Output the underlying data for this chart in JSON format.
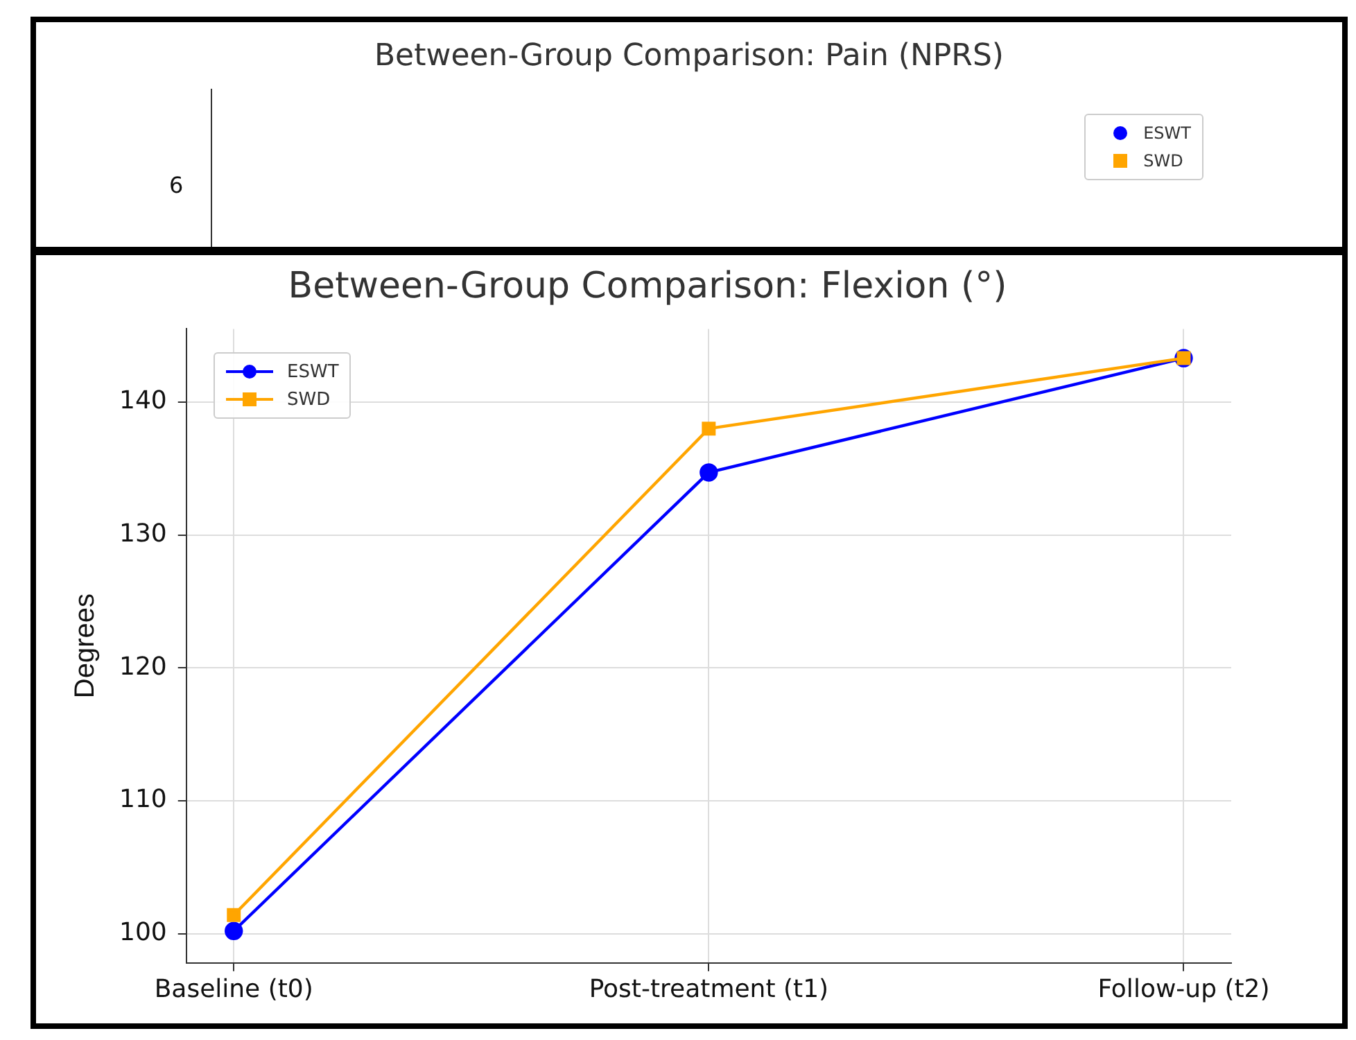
{
  "chart_data": [
    {
      "type": "other",
      "title": "Between-Group Comparison: Pain (NPRS)",
      "annotations": [
        "6",
        "ESWT",
        "SWD"
      ],
      "colors": [
        "#0000ff",
        "#ffa500"
      ]
    },
    {
      "type": "line",
      "title": "Between-Group Comparison: Flexion (°)",
      "ylabel": "Degrees",
      "categories": [
        "Baseline (t0)",
        "Post-treatment (t1)",
        "Follow-up (t2)"
      ],
      "ylim": [
        97.8,
        145.5
      ],
      "yticks": [
        100,
        110,
        120,
        130,
        140
      ],
      "grid": true,
      "legend": "top left",
      "series": [
        {
          "name": "ESWT",
          "color": "#0000ff",
          "marker": "circle",
          "values": [
            100.2,
            134.7,
            143.3
          ]
        },
        {
          "name": "SWD",
          "color": "#ffa500",
          "marker": "square",
          "values": [
            101.4,
            138.0,
            143.3
          ]
        }
      ]
    }
  ]
}
